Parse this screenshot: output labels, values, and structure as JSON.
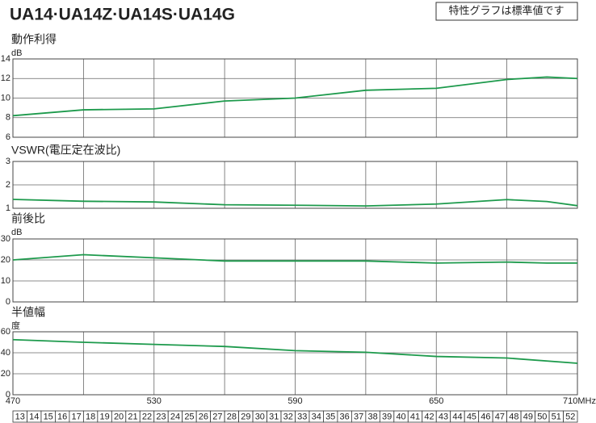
{
  "header": {
    "title": "UA14·UA14Z·UA14S·UA14G",
    "note": "特性グラフは標準値です"
  },
  "chart_data": [
    {
      "type": "line",
      "title": "動作利得",
      "unit": "dB",
      "color": "#1d9a4c",
      "x": [
        470,
        500,
        530,
        560,
        590,
        620,
        650,
        680,
        697,
        710
      ],
      "values": [
        8.2,
        8.8,
        8.9,
        9.7,
        10.0,
        10.8,
        11.0,
        11.9,
        12.15,
        12.0
      ],
      "xlim": [
        470,
        710
      ],
      "xgrid": [
        470,
        500,
        530,
        560,
        590,
        620,
        650,
        680,
        710
      ],
      "ylim": [
        6,
        14
      ],
      "yticks": [
        6,
        8,
        10,
        12,
        14
      ]
    },
    {
      "type": "line",
      "title": "VSWR(電圧定在波比)",
      "color": "#1d9a4c",
      "x": [
        470,
        500,
        530,
        560,
        590,
        620,
        650,
        680,
        697,
        710
      ],
      "values": [
        1.38,
        1.3,
        1.27,
        1.15,
        1.13,
        1.1,
        1.18,
        1.37,
        1.29,
        1.11
      ],
      "xlim": [
        470,
        710
      ],
      "xgrid": [
        470,
        500,
        530,
        560,
        590,
        620,
        650,
        680,
        710
      ],
      "ylim": [
        1,
        3
      ],
      "yticks": [
        1,
        2,
        3
      ]
    },
    {
      "type": "line",
      "title": "前後比",
      "unit": "dB",
      "color": "#1d9a4c",
      "x": [
        470,
        500,
        530,
        560,
        590,
        620,
        650,
        680,
        697,
        710
      ],
      "values": [
        20,
        22.5,
        21,
        19.5,
        19.5,
        19.5,
        18.5,
        19,
        18.5,
        18.5
      ],
      "xlim": [
        470,
        710
      ],
      "xgrid": [
        470,
        500,
        530,
        560,
        590,
        620,
        650,
        680,
        710
      ],
      "ylim": [
        0,
        30
      ],
      "yticks": [
        0,
        10,
        20,
        30
      ]
    },
    {
      "type": "line",
      "title": "半値幅",
      "unit": "度",
      "color": "#1d9a4c",
      "x": [
        470,
        500,
        530,
        560,
        590,
        620,
        650,
        680,
        710
      ],
      "values": [
        52.5,
        50,
        48,
        46,
        42,
        40.5,
        36.5,
        35,
        30
      ],
      "xlim": [
        470,
        710
      ],
      "xgrid": [
        470,
        500,
        530,
        560,
        590,
        620,
        650,
        680,
        710
      ],
      "ylim": [
        0,
        60
      ],
      "yticks": [
        0,
        20,
        40,
        60
      ],
      "xticks": [
        470,
        530,
        590,
        650,
        {
          "value": 710,
          "label": "710MHz"
        }
      ]
    }
  ],
  "channels": [
    13,
    14,
    15,
    16,
    17,
    18,
    19,
    20,
    21,
    22,
    23,
    24,
    25,
    26,
    27,
    28,
    29,
    30,
    31,
    32,
    33,
    34,
    35,
    36,
    37,
    38,
    39,
    40,
    41,
    42,
    43,
    44,
    45,
    46,
    47,
    48,
    49,
    50,
    51,
    52
  ]
}
